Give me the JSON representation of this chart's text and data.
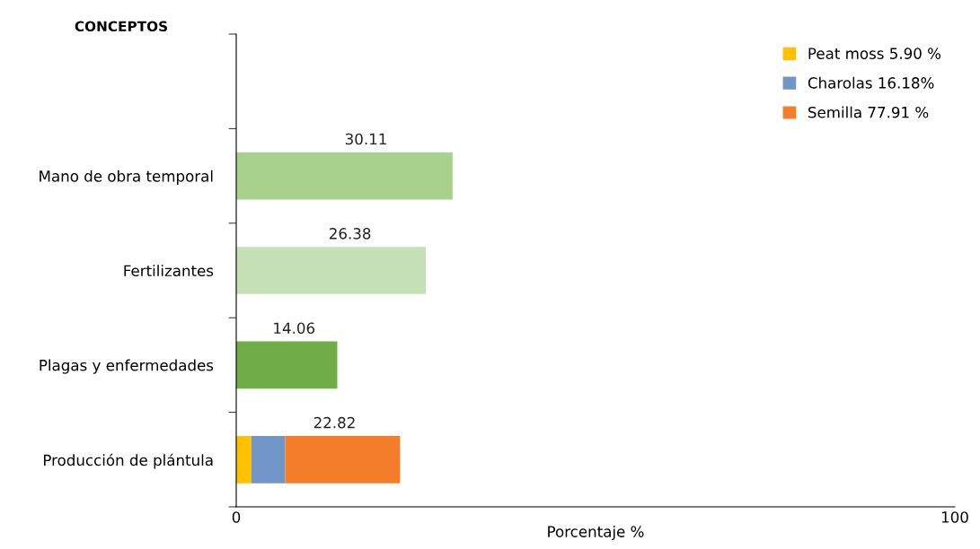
{
  "chart_data": {
    "type": "bar",
    "orientation": "horizontal",
    "stacked": true,
    "ylabel": "CONCEPTOS",
    "xlabel": "Porcentaje %",
    "categories": [
      null,
      "Mano de obra temporal",
      "Fertilizantes",
      "Plagas y enfermedades",
      "Producción de plántula"
    ],
    "series": [
      {
        "colors": [
          "#a9d18e",
          "#a9d18e",
          "#c5e0b4",
          "#70ad47",
          "#70ad47"
        ],
        "values": [
          null,
          30.11,
          26.38,
          14.06,
          null
        ]
      },
      {
        "name": "Peat moss 5.90 %",
        "color": "#ffc000",
        "values": [
          null,
          null,
          null,
          null,
          2.1
        ]
      },
      {
        "name": "Charolas 16.18%",
        "color": "#7295c8",
        "values": [
          null,
          null,
          null,
          null,
          4.7
        ]
      },
      {
        "name": "Semilla 77.91 %",
        "color": "#f47d2a",
        "values": [
          null,
          null,
          null,
          null,
          16.0
        ]
      }
    ],
    "totals": [
      null,
      "30.11",
      "26.38",
      "14.06",
      "22.82"
    ],
    "xlim": [
      0,
      100
    ],
    "xticks": [
      0,
      100
    ],
    "legend": "top right",
    "grid": false
  }
}
